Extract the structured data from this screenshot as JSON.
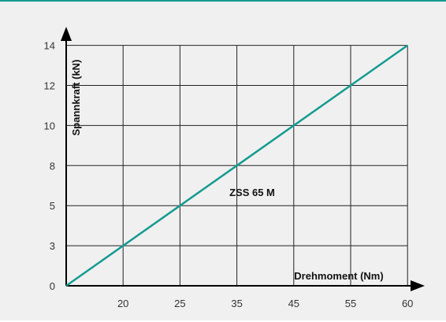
{
  "colors": {
    "accent": "#139b8f",
    "background": "#f0f0f0",
    "grid": "#222222"
  },
  "chart_data": {
    "type": "line",
    "title": "",
    "xlabel": "Drehmoment (Nm)",
    "ylabel": "Spannkraft (kN)",
    "x_ticks": [
      "20",
      "25",
      "35",
      "45",
      "55",
      "60"
    ],
    "y_ticks": [
      "0",
      "3",
      "5",
      "8",
      "10",
      "12",
      "14"
    ],
    "grid": true,
    "series": [
      {
        "name": "ZSS 65 M",
        "points": [
          {
            "x": "start",
            "y": "0"
          },
          {
            "x": "20",
            "y": "3"
          },
          {
            "x": "25",
            "y": "5"
          },
          {
            "x": "35",
            "y": "8"
          },
          {
            "x": "45",
            "y": "10"
          },
          {
            "x": "55",
            "y": "12"
          },
          {
            "x": "60",
            "y": "14"
          }
        ]
      }
    ]
  }
}
